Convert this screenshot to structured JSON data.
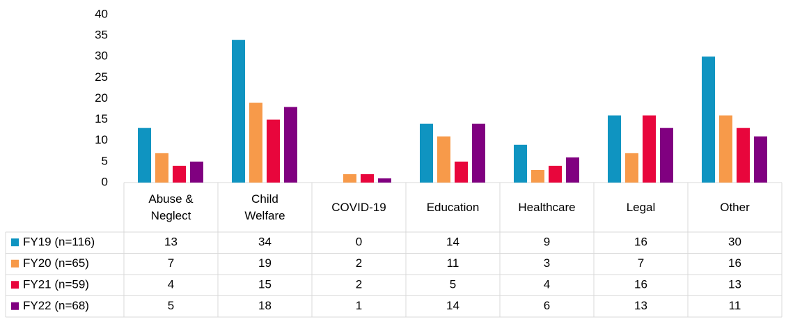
{
  "chart_data": {
    "type": "bar",
    "categories": [
      "Abuse & Neglect",
      "Child Welfare",
      "COVID-19",
      "Education",
      "Healthcare",
      "Legal",
      "Other"
    ],
    "series": [
      {
        "name": "FY19 (n=116)",
        "color": "#0f94c1",
        "values": [
          13,
          34,
          0,
          14,
          9,
          16,
          30
        ]
      },
      {
        "name": "FY20 (n=65)",
        "color": "#f79a4a",
        "values": [
          7,
          19,
          2,
          11,
          3,
          7,
          16
        ]
      },
      {
        "name": "FY21 (n=59)",
        "color": "#e8063c",
        "values": [
          4,
          15,
          2,
          5,
          4,
          16,
          13
        ]
      },
      {
        "name": "FY22 (n=68)",
        "color": "#800080",
        "values": [
          5,
          18,
          1,
          14,
          6,
          13,
          11
        ]
      }
    ],
    "ylim": [
      0,
      40
    ],
    "yticks": [
      0,
      5,
      10,
      15,
      20,
      25,
      30,
      35,
      40
    ],
    "grid": false
  }
}
